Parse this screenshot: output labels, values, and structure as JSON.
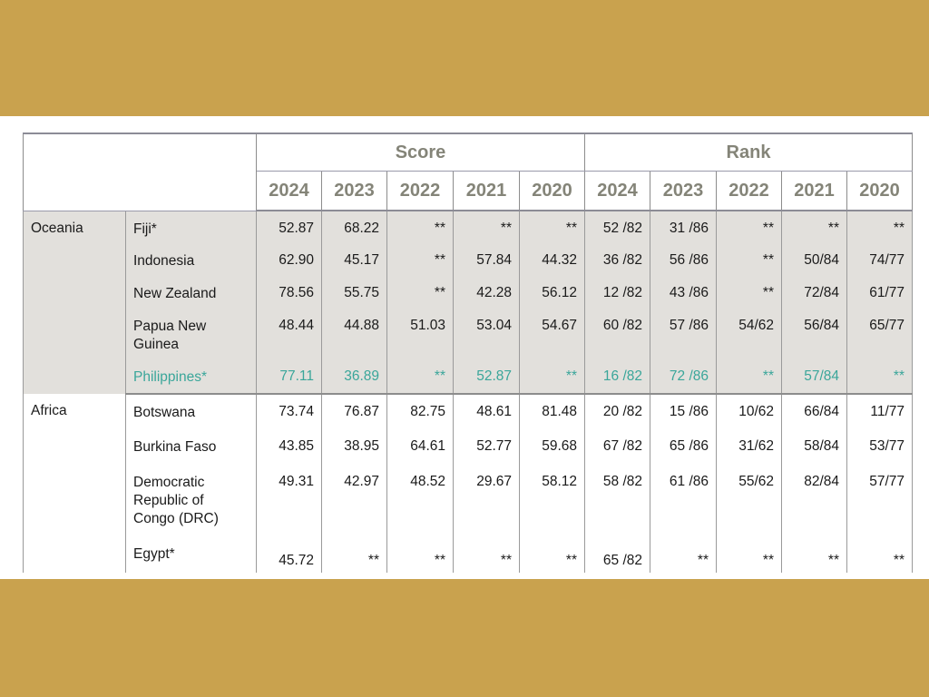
{
  "table": {
    "group_headers": {
      "score": "Score",
      "rank": "Rank"
    },
    "years": [
      "2024",
      "2023",
      "2022",
      "2021",
      "2020"
    ],
    "regions": [
      {
        "name": "Oceania",
        "rows": [
          {
            "country": "Fiji*",
            "score": [
              "52.87",
              "68.22",
              "**",
              "**",
              "**"
            ],
            "rank": [
              "52 /82",
              "31 /86",
              "**",
              "**",
              "**"
            ]
          },
          {
            "country": "Indonesia",
            "score": [
              "62.90",
              "45.17",
              "**",
              "57.84",
              "44.32"
            ],
            "rank": [
              "36 /82",
              "56 /86",
              "**",
              "50/84",
              "74/77"
            ]
          },
          {
            "country": "New Zealand",
            "score": [
              "78.56",
              "55.75",
              "**",
              "42.28",
              "56.12"
            ],
            "rank": [
              "12 /82",
              "43 /86",
              "**",
              "72/84",
              "61/77"
            ]
          },
          {
            "country": "Papua New Guinea",
            "score": [
              "48.44",
              "44.88",
              "51.03",
              "53.04",
              "54.67"
            ],
            "rank": [
              "60 /82",
              "57 /86",
              "54/62",
              "56/84",
              "65/77"
            ]
          },
          {
            "country": "Philippines*",
            "highlighted": true,
            "score": [
              "77.11",
              "36.89",
              "**",
              "52.87",
              "**"
            ],
            "rank": [
              "16 /82",
              "72 /86",
              "**",
              "57/84",
              "**"
            ]
          }
        ]
      },
      {
        "name": "Africa",
        "rows": [
          {
            "country": "Botswana",
            "score": [
              "73.74",
              "76.87",
              "82.75",
              "48.61",
              "81.48"
            ],
            "rank": [
              "20 /82",
              "15 /86",
              "10/62",
              "66/84",
              "11/77"
            ]
          },
          {
            "country": "Burkina Faso",
            "score": [
              "43.85",
              "38.95",
              "64.61",
              "52.77",
              "59.68"
            ],
            "rank": [
              "67 /82",
              "65 /86",
              "31/62",
              "58/84",
              "53/77"
            ]
          },
          {
            "country": "Democratic Republic of Congo (DRC)",
            "score": [
              "49.31",
              "42.97",
              "48.52",
              "29.67",
              "58.12"
            ],
            "rank": [
              "58 /82",
              "61 /86",
              "55/62",
              "82/84",
              "57/77"
            ]
          },
          {
            "country": "Egypt*",
            "score": [
              "45.72",
              "**",
              "**",
              "**",
              "**"
            ],
            "rank": [
              "65 /82",
              "**",
              "**",
              "**",
              "**"
            ]
          }
        ]
      }
    ]
  },
  "colors": {
    "frame": "#c9a24e",
    "highlight": "#9fece6",
    "highlight_text": "#3aa69a",
    "header_text": "#848478",
    "oceania_bg": "#e2e0dc"
  }
}
